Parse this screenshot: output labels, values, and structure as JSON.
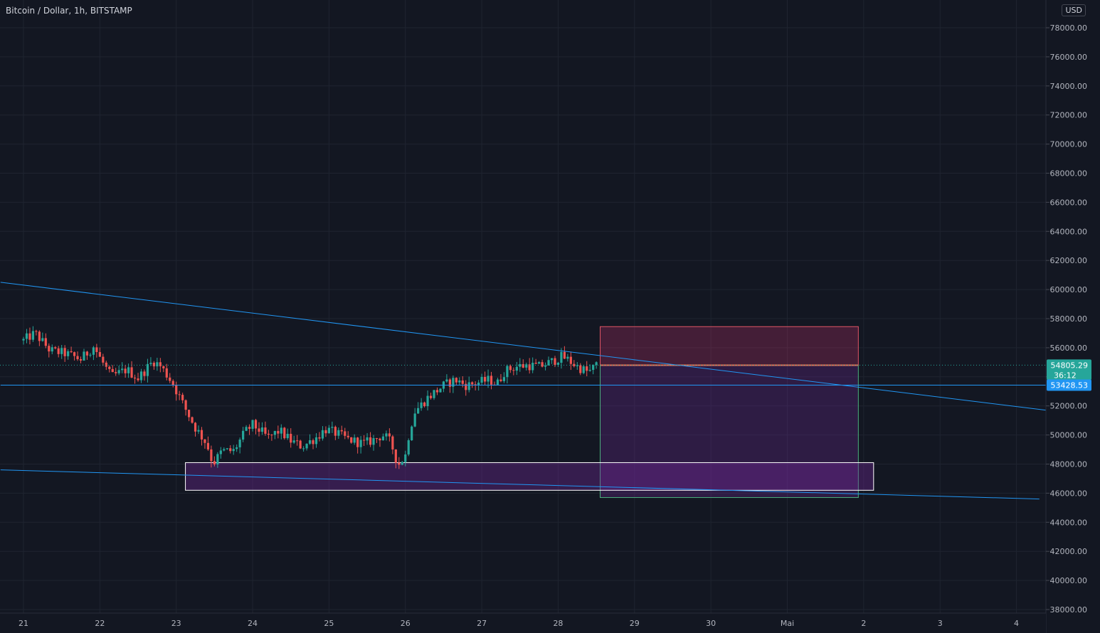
{
  "header": {
    "symbol": "Bitcoin / Dollar, 1h, BITSTAMP",
    "currency": "USD"
  },
  "colors": {
    "background": "#131722",
    "grid": "#1f2430",
    "up": "#26a69a",
    "down": "#ef5350",
    "trendline": "#2196f3",
    "axis_text": "#b2b5be"
  },
  "chart_data": {
    "type": "candlestick",
    "x_ticks": [
      {
        "label": "21",
        "day": 0
      },
      {
        "label": "22",
        "day": 1
      },
      {
        "label": "23",
        "day": 2
      },
      {
        "label": "24",
        "day": 3
      },
      {
        "label": "25",
        "day": 4
      },
      {
        "label": "26",
        "day": 5
      },
      {
        "label": "27",
        "day": 6
      },
      {
        "label": "28",
        "day": 7
      },
      {
        "label": "29",
        "day": 8
      },
      {
        "label": "30",
        "day": 9
      },
      {
        "label": "Mai",
        "day": 10
      },
      {
        "label": "2",
        "day": 11
      },
      {
        "label": "3",
        "day": 12
      },
      {
        "label": "4",
        "day": 13
      }
    ],
    "y_ticks": [
      78000,
      76000,
      74000,
      72000,
      70000,
      68000,
      66000,
      64000,
      62000,
      60000,
      58000,
      56000,
      54000,
      52000,
      50000,
      48000,
      46000,
      44000,
      42000,
      40000,
      38000
    ],
    "y_range": [
      37500,
      79000
    ],
    "anchors": [
      {
        "day": 0.0,
        "price": 56500
      },
      {
        "day": 0.15,
        "price": 57000
      },
      {
        "day": 0.35,
        "price": 55800
      },
      {
        "day": 0.55,
        "price": 55600
      },
      {
        "day": 0.75,
        "price": 55200
      },
      {
        "day": 0.92,
        "price": 56100
      },
      {
        "day": 1.0,
        "price": 55300
      },
      {
        "day": 1.15,
        "price": 54000
      },
      {
        "day": 1.35,
        "price": 54500
      },
      {
        "day": 1.5,
        "price": 53900
      },
      {
        "day": 1.7,
        "price": 55100
      },
      {
        "day": 1.8,
        "price": 54700
      },
      {
        "day": 1.95,
        "price": 53600
      },
      {
        "day": 2.1,
        "price": 52000
      },
      {
        "day": 2.25,
        "price": 50500
      },
      {
        "day": 2.4,
        "price": 49400
      },
      {
        "day": 2.48,
        "price": 48000
      },
      {
        "day": 2.6,
        "price": 48900
      },
      {
        "day": 2.75,
        "price": 48900
      },
      {
        "day": 2.9,
        "price": 50200
      },
      {
        "day": 3.0,
        "price": 50700
      },
      {
        "day": 3.1,
        "price": 50300
      },
      {
        "day": 3.2,
        "price": 49800
      },
      {
        "day": 3.35,
        "price": 50300
      },
      {
        "day": 3.5,
        "price": 49600
      },
      {
        "day": 3.65,
        "price": 49200
      },
      {
        "day": 3.85,
        "price": 49900
      },
      {
        "day": 3.95,
        "price": 50400
      },
      {
        "day": 4.1,
        "price": 50100
      },
      {
        "day": 4.25,
        "price": 49700
      },
      {
        "day": 4.45,
        "price": 49400
      },
      {
        "day": 4.6,
        "price": 49700
      },
      {
        "day": 4.7,
        "price": 50000
      },
      {
        "day": 4.78,
        "price": 49700
      },
      {
        "day": 4.85,
        "price": 48900
      },
      {
        "day": 4.9,
        "price": 47900
      },
      {
        "day": 5.0,
        "price": 48600
      },
      {
        "day": 5.05,
        "price": 50200
      },
      {
        "day": 5.12,
        "price": 51600
      },
      {
        "day": 5.3,
        "price": 52600
      },
      {
        "day": 5.5,
        "price": 53400
      },
      {
        "day": 5.65,
        "price": 53800
      },
      {
        "day": 5.8,
        "price": 53400
      },
      {
        "day": 5.95,
        "price": 53600
      },
      {
        "day": 6.1,
        "price": 53800
      },
      {
        "day": 6.2,
        "price": 53500
      },
      {
        "day": 6.3,
        "price": 54400
      },
      {
        "day": 6.45,
        "price": 54700
      },
      {
        "day": 6.6,
        "price": 54800
      },
      {
        "day": 6.75,
        "price": 54700
      },
      {
        "day": 6.9,
        "price": 55000
      },
      {
        "day": 7.05,
        "price": 55400
      },
      {
        "day": 7.12,
        "price": 55200
      },
      {
        "day": 7.25,
        "price": 54700
      },
      {
        "day": 7.4,
        "price": 54300
      },
      {
        "day": 7.5,
        "price": 54800
      }
    ],
    "trendlines": [
      {
        "name": "descending-resistance",
        "from": {
          "day": -0.3,
          "price": 60500
        },
        "to": {
          "day": 13.4,
          "price": 51700
        }
      },
      {
        "name": "descending-support",
        "from": {
          "day": -0.3,
          "price": 47600
        },
        "to": {
          "day": 13.3,
          "price": 45600
        }
      },
      {
        "name": "horizontal-level",
        "from": {
          "day": -0.3,
          "price": 53428.53
        },
        "to": {
          "day": 13.4,
          "price": 53428.53
        }
      }
    ],
    "support_zone": {
      "from_day": 2.12,
      "to_day": 11.13,
      "top": 48100,
      "bottom": 46200
    },
    "position_tool": {
      "from_day": 7.55,
      "to_day": 10.93,
      "stop": 57450,
      "entry": 54800,
      "target": 45700
    },
    "price_labels": {
      "last_price": "54805.29",
      "countdown": "36:12",
      "level_price": "53428.53",
      "last_price_value": 54805.29,
      "level_price_value": 53428.53
    }
  }
}
